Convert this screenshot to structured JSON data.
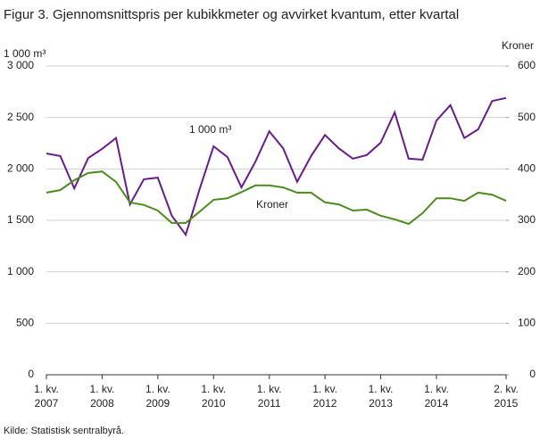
{
  "chart_data": {
    "type": "line",
    "title": "Figur 3. Gjennomsnittspris per kubikkmeter og avvirket kvantum, etter kvartal",
    "y_label": "1 000 m³",
    "y2_label": "Kroner",
    "source": "Kilde: Statistisk sentralbyrå.",
    "categories": [
      "1. kv. 2007",
      null,
      null,
      null,
      "1. kv. 2008",
      null,
      null,
      null,
      "1. kv. 2009",
      null,
      null,
      null,
      "1. kv. 2010",
      null,
      null,
      null,
      "1. kv. 2011",
      null,
      null,
      null,
      "1. kv. 2012",
      null,
      null,
      null,
      "1. kv. 2013",
      null,
      null,
      null,
      "1. kv. 2014",
      null,
      null,
      null,
      null,
      "2. kv. 2015"
    ],
    "series": [
      {
        "name": "1 000 m³",
        "color": "#6a1b8a",
        "values": [
          2150,
          2125,
          1810,
          2105,
          2195,
          2300,
          1655,
          1900,
          1915,
          1545,
          1360,
          1805,
          2220,
          2115,
          1820,
          2070,
          2365,
          2200,
          1875,
          2125,
          2330,
          2200,
          2100,
          2135,
          2255,
          2550,
          2100,
          2090,
          2470,
          2620,
          2300,
          2385,
          2660,
          2690
        ]
      },
      {
        "name": "Kroner",
        "color": "#4a8c1c",
        "axis": "y2",
        "values": [
          354,
          359,
          378,
          392,
          395,
          375,
          335,
          330,
          319,
          295,
          295,
          317,
          340,
          343,
          355,
          368,
          368,
          364,
          354,
          354,
          335,
          331,
          319,
          321,
          309,
          302,
          293,
          314,
          343,
          343,
          338,
          354,
          350,
          338
        ]
      }
    ],
    "ylim": [
      0,
      3000
    ],
    "yticks": [
      0,
      500,
      {
        "value": 1000,
        "label": "1 000"
      },
      {
        "value": 1500,
        "label": "1 500"
      },
      {
        "value": 2000,
        "label": "2 000"
      },
      {
        "value": 2500,
        "label": "2 500"
      },
      {
        "value": 3000,
        "label": "3 000"
      }
    ],
    "y2lim": [
      0,
      600
    ],
    "y2ticks": [
      0,
      100,
      200,
      300,
      400,
      500,
      600
    ],
    "grid": true
  }
}
